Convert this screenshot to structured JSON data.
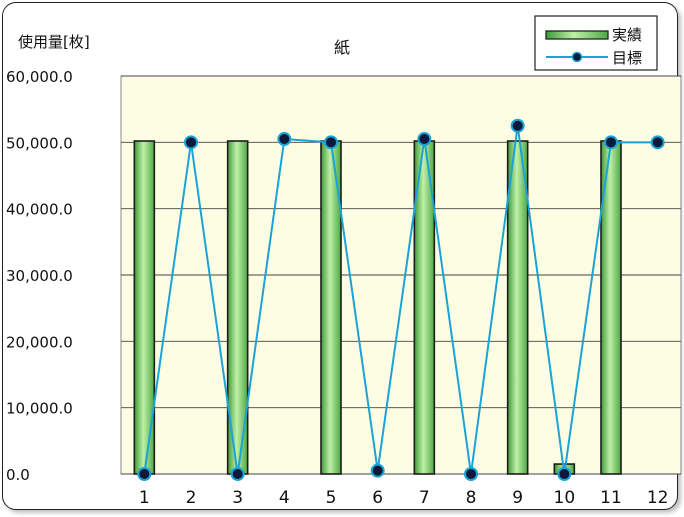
{
  "chart_data": {
    "type": "bar",
    "title": "紙",
    "ylabel": "使用量[枚]",
    "xlabel": "",
    "ylim": [
      0,
      60000
    ],
    "y_ticks": [
      "0.0",
      "10,000.0",
      "20,000.0",
      "30,000.0",
      "40,000.0",
      "50,000.0",
      "60,000.0"
    ],
    "categories": [
      "1",
      "2",
      "3",
      "4",
      "5",
      "6",
      "7",
      "8",
      "9",
      "10",
      "11",
      "12"
    ],
    "series": [
      {
        "name": "実績",
        "type": "bar",
        "values": [
          50200,
          0,
          50200,
          0,
          50200,
          0,
          50200,
          0,
          50200,
          1500,
          50200,
          0
        ],
        "color": "#7ec86a"
      },
      {
        "name": "目標",
        "type": "line",
        "values": [
          0,
          50000,
          0,
          50500,
          50000,
          500,
          50500,
          0,
          52500,
          0,
          50000,
          50000
        ],
        "color": "#1aa3d6"
      }
    ],
    "legend_position": "top-right",
    "plot_background": "#fdfde4",
    "grid": true
  }
}
